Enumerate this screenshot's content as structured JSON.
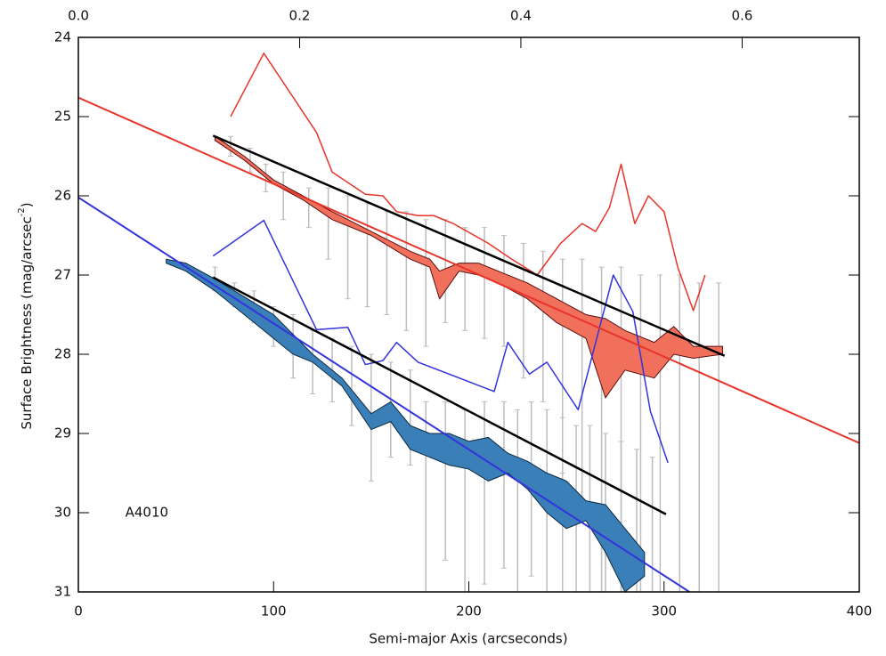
{
  "chart_data": {
    "type": "line",
    "x_label": "Semi-major Axis (arcseconds)",
    "y_label": "Surface Brightness (mag/arcsec",
    "y_label_sup": "-2",
    "y_label_end": ")",
    "annotation": {
      "text": "A4010",
      "x": 24,
      "y": 30.0
    },
    "xlim": [
      0,
      400
    ],
    "xticks": [
      0,
      100,
      200,
      300,
      400
    ],
    "x2lim": [
      0,
      0.7059
    ],
    "x2ticks": [
      {
        "value": 0,
        "label": "0.0"
      },
      0.2,
      0.4,
      0.6
    ],
    "ylim": [
      24,
      31
    ],
    "y_inverted": true,
    "yticks": [
      24,
      25,
      26,
      27,
      28,
      29,
      30,
      31
    ],
    "error_bars": [
      {
        "color": "#bdbdbd",
        "x": [
          78,
          88,
          96,
          105,
          118,
          128,
          138,
          148,
          158,
          168,
          178,
          188,
          198,
          208,
          218,
          228,
          238,
          248,
          258,
          268,
          278,
          288,
          298,
          308,
          318,
          328
        ],
        "low": [
          25.25,
          25.4,
          25.6,
          25.7,
          25.9,
          25.9,
          26.0,
          26.1,
          26.2,
          26.2,
          26.3,
          26.3,
          26.4,
          26.4,
          26.5,
          26.6,
          26.7,
          26.8,
          26.8,
          26.9,
          26.9,
          27.0,
          27.0,
          27.0,
          27.1,
          27.1
        ],
        "high": [
          25.5,
          25.7,
          25.95,
          26.3,
          26.4,
          26.8,
          27.3,
          27.4,
          27.5,
          27.7,
          27.9,
          27.6,
          27.7,
          27.8,
          27.9,
          28.3,
          28.6,
          29.5,
          30.0,
          31.0,
          31.0,
          31.0,
          31.0,
          31.0,
          31.0,
          31.0
        ]
      },
      {
        "color": "#bdbdbd",
        "x": [
          70,
          80,
          90,
          100,
          110,
          120,
          130,
          140,
          150,
          160,
          170,
          178,
          188,
          198,
          208,
          218,
          225,
          232,
          240,
          248,
          255,
          262,
          270,
          278,
          286,
          294
        ],
        "low": [
          26.9,
          27.1,
          27.2,
          27.4,
          27.5,
          27.7,
          27.8,
          27.9,
          28.0,
          28.1,
          28.2,
          28.6,
          28.6,
          28.7,
          28.6,
          28.6,
          28.7,
          28.6,
          28.7,
          28.8,
          28.9,
          28.9,
          29.0,
          29.1,
          29.2,
          29.3
        ],
        "high": [
          27.2,
          27.4,
          27.6,
          27.9,
          28.3,
          28.5,
          28.6,
          28.9,
          29.6,
          29.3,
          29.4,
          31.0,
          30.6,
          31.0,
          30.9,
          30.7,
          31.0,
          30.8,
          31.0,
          31.0,
          31.0,
          31.0,
          31.0,
          31.0,
          31.0,
          31.0
        ]
      }
    ],
    "bands": [
      {
        "color": "#f0705c",
        "edge_color": "#5a0f0f",
        "x": [
          70,
          85,
          100,
          115,
          130,
          150,
          170,
          180,
          185,
          195,
          205,
          215,
          230,
          245,
          260,
          270,
          280,
          295,
          305,
          315,
          330
        ],
        "top": [
          25.25,
          25.5,
          25.8,
          26.0,
          26.2,
          26.45,
          26.7,
          26.8,
          26.95,
          26.85,
          26.85,
          26.95,
          27.1,
          27.3,
          27.5,
          27.55,
          27.7,
          27.85,
          27.65,
          27.9,
          27.9
        ],
        "bottom": [
          25.3,
          25.55,
          25.85,
          26.05,
          26.3,
          26.5,
          26.8,
          26.9,
          27.3,
          26.95,
          27.0,
          27.1,
          27.3,
          27.6,
          27.8,
          28.55,
          28.2,
          28.3,
          28.0,
          28.05,
          28.0
        ]
      },
      {
        "color": "#3a7fb8",
        "edge_color": "#0d2a40",
        "x": [
          45,
          55,
          70,
          80,
          90,
          100,
          110,
          120,
          135,
          150,
          160,
          170,
          180,
          190,
          200,
          210,
          220,
          230,
          240,
          250,
          260,
          270,
          280,
          290
        ],
        "top": [
          26.8,
          26.85,
          27.05,
          27.2,
          27.35,
          27.5,
          27.75,
          28.0,
          28.3,
          28.75,
          28.6,
          28.9,
          29.0,
          29.0,
          29.1,
          29.05,
          29.25,
          29.35,
          29.5,
          29.6,
          29.85,
          29.9,
          30.2,
          30.5
        ],
        "bottom": [
          26.85,
          26.95,
          27.2,
          27.4,
          27.6,
          27.8,
          28.0,
          28.1,
          28.4,
          28.95,
          28.85,
          29.2,
          29.3,
          29.4,
          29.45,
          29.6,
          29.5,
          29.7,
          30.0,
          30.2,
          30.1,
          30.5,
          31.0,
          30.8
        ]
      }
    ],
    "series": [
      {
        "color": "#e8342a",
        "line_width": 1.5,
        "x": [
          78,
          95,
          122,
          130,
          147,
          156,
          163,
          174,
          182,
          192,
          210,
          222,
          235,
          247,
          258,
          265,
          272,
          278,
          285,
          292,
          300,
          307,
          315,
          321
        ],
        "values": [
          25.0,
          24.2,
          25.2,
          25.7,
          25.98,
          26.0,
          26.2,
          26.25,
          26.25,
          26.35,
          26.6,
          26.8,
          27.0,
          26.6,
          26.35,
          26.45,
          26.15,
          25.6,
          26.35,
          26.0,
          26.2,
          26.9,
          27.45,
          27.0
        ]
      },
      {
        "color": "#3333dd",
        "line_width": 1.5,
        "x": [
          69,
          95,
          122,
          138,
          147,
          156,
          163,
          174,
          213,
          220,
          231,
          240,
          256,
          274,
          284,
          293,
          302
        ],
        "values": [
          26.76,
          26.31,
          27.69,
          27.66,
          28.13,
          28.08,
          27.85,
          28.1,
          28.47,
          27.85,
          28.25,
          28.1,
          28.7,
          27.0,
          27.46,
          28.72,
          29.37
        ]
      },
      {
        "color": "#e8342a",
        "line_width": 2,
        "x": [
          0,
          400
        ],
        "values": [
          24.76,
          29.12
        ]
      },
      {
        "color": "#3333dd",
        "line_width": 2,
        "x": [
          0,
          313
        ],
        "values": [
          26.02,
          31.0
        ]
      },
      {
        "color": "#000000",
        "line_width": 2.5,
        "x": [
          69,
          331
        ],
        "values": [
          25.24,
          28.02
        ]
      },
      {
        "color": "#000000",
        "line_width": 2.5,
        "x": [
          69,
          301
        ],
        "values": [
          27.03,
          30.02
        ]
      }
    ]
  }
}
